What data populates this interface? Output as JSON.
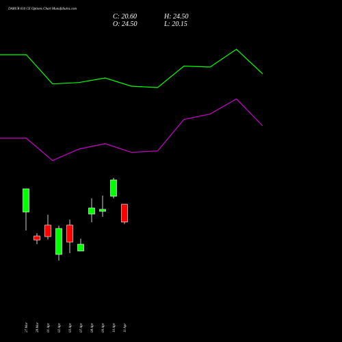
{
  "chart_data": {
    "type": "candlestick",
    "title": "DABUR 610 CE Options Chart MunafaSutra.com",
    "info": {
      "close": "C: 20.60",
      "high": "H: 24.50",
      "open": "O: 24.50",
      "low": "L: 20.15"
    },
    "categories": [
      "27 Mar",
      "28 Mar",
      "01 Apr",
      "02 Apr",
      "03 Apr",
      "07 Apr",
      "08 Apr",
      "09 Apr",
      "10 Apr",
      "11 Apr"
    ],
    "open": [
      22.8,
      17.55,
      19.95,
      13.5,
      19.95,
      14.25,
      22.35,
      22.95,
      26.25,
      24.5
    ],
    "high": [
      27.9,
      18.15,
      22.2,
      19.8,
      21.15,
      16.95,
      25.8,
      26.4,
      30.3,
      24.5
    ],
    "low": [
      18.75,
      15.75,
      16.8,
      12.15,
      13.8,
      14.25,
      20.55,
      21.75,
      25.8,
      20.15
    ],
    "close": [
      27.9,
      16.65,
      17.4,
      19.2,
      16.2,
      15.75,
      23.7,
      23.4,
      29.85,
      20.6
    ],
    "up_color": "#00ff00",
    "down_color": "#ff0000",
    "lines": {
      "categories": [
        null,
        null,
        null,
        null,
        null,
        null,
        null,
        null,
        null,
        null,
        null
      ],
      "series": [
        {
          "color": "#00ff00",
          "values": [
            57.3,
            57.3,
            50.9,
            51.2,
            52.2,
            50.4,
            50.1,
            54.8,
            54.6,
            58.5,
            53.1
          ]
        },
        {
          "color": "#cc00cc",
          "values": [
            39.0,
            39.0,
            34.1,
            36.6,
            37.8,
            35.9,
            36.2,
            43.1,
            44.3,
            47.6,
            41.7
          ]
        }
      ]
    },
    "ylim": [
      0,
      60
    ]
  }
}
